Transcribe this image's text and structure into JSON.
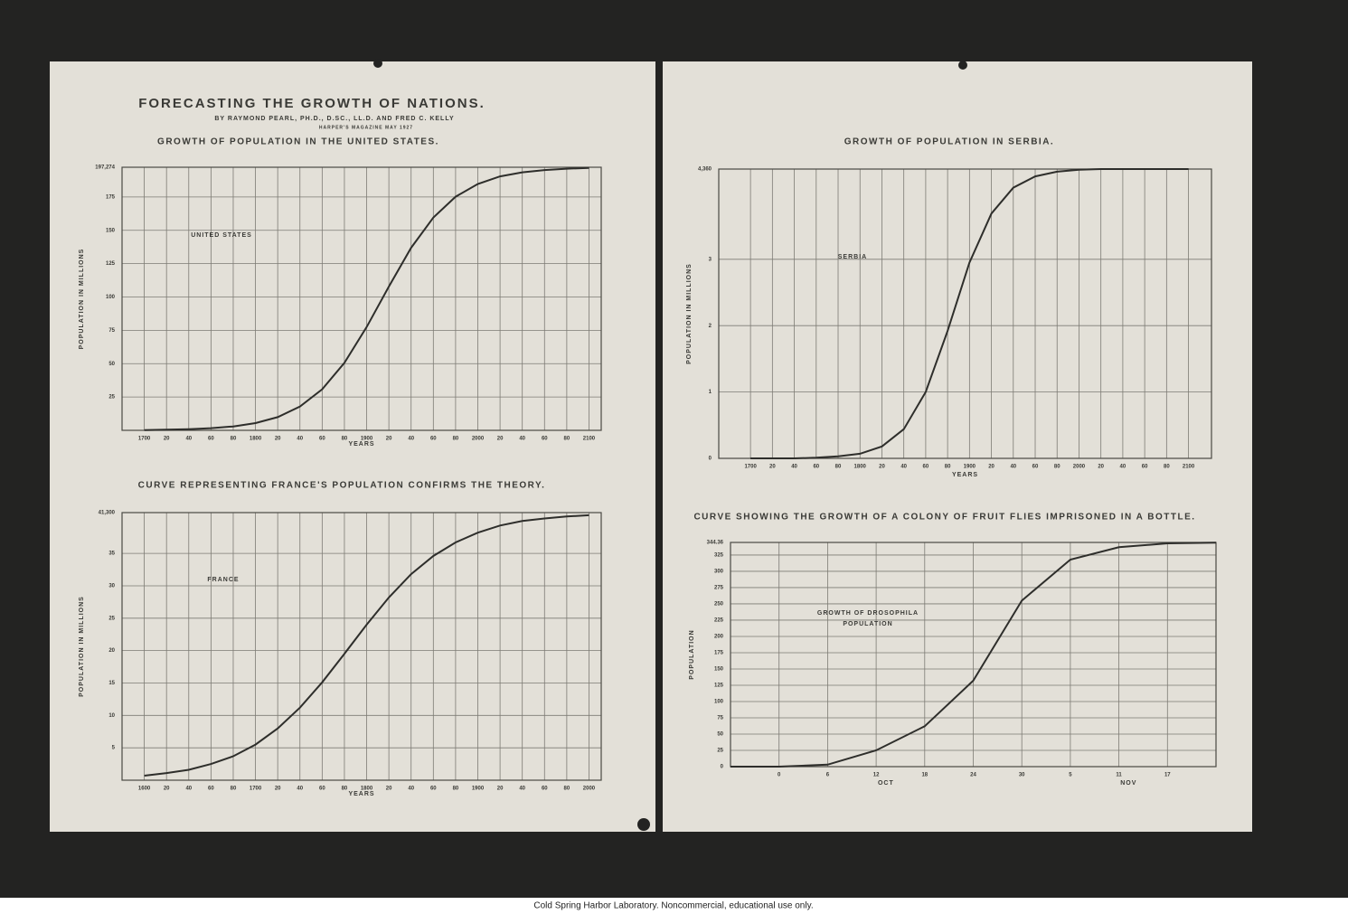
{
  "header": {
    "title": "FORECASTING THE GROWTH OF NATIONS.",
    "byline": "BY RAYMOND PEARL, PH.D., D.SC., LL.D. AND FRED C. KELLY",
    "source": "HARPER'S MAGAZINE MAY 1927"
  },
  "footer": "Cold Spring Harbor Laboratory. Noncommercial, educational use only.",
  "chart_data": [
    {
      "type": "line",
      "title": "GROWTH OF POPULATION IN THE UNITED STATES.",
      "ylabel": "POPULATION IN MILLIONS",
      "xlabel": "YEARS",
      "annotation": "UNITED STATES",
      "color": "#2e2e2b",
      "grid": true,
      "x": [
        1700,
        1720,
        1740,
        1760,
        1780,
        1800,
        1820,
        1840,
        1860,
        1880,
        1900,
        1920,
        1940,
        1960,
        1980,
        2000,
        2020,
        2040,
        2060,
        2080,
        2100
      ],
      "values": [
        0.2,
        0.5,
        0.9,
        1.6,
        2.9,
        5.4,
        9.9,
        17.8,
        30.7,
        50.6,
        77.4,
        107.8,
        136.9,
        159.5,
        175.2,
        184.7,
        190.4,
        193.5,
        195.2,
        196.2,
        196.7
      ],
      "xlim": [
        1680,
        2111
      ],
      "ylim": [
        0,
        197.274
      ],
      "xticks": [
        1700,
        {
          "value": 1720,
          "label": "20"
        },
        {
          "value": 1740,
          "label": "40"
        },
        {
          "value": 1760,
          "label": "60"
        },
        {
          "value": 1780,
          "label": "80"
        },
        1800,
        {
          "value": 1820,
          "label": "20"
        },
        {
          "value": 1840,
          "label": "40"
        },
        {
          "value": 1860,
          "label": "60"
        },
        {
          "value": 1880,
          "label": "80"
        },
        1900,
        {
          "value": 1920,
          "label": "20"
        },
        {
          "value": 1940,
          "label": "40"
        },
        {
          "value": 1960,
          "label": "60"
        },
        {
          "value": 1980,
          "label": "80"
        },
        2000,
        {
          "value": 2020,
          "label": "20"
        },
        {
          "value": 2040,
          "label": "40"
        },
        {
          "value": 2060,
          "label": "60"
        },
        {
          "value": 2080,
          "label": "80"
        },
        2100
      ],
      "yticks": [
        25,
        50,
        75,
        100,
        125,
        150,
        175,
        {
          "value": 197.274,
          "label": "197,274"
        }
      ]
    },
    {
      "type": "line",
      "title": "CURVE REPRESENTING FRANCE'S POPULATION CONFIRMS THE THEORY.",
      "ylabel": "POPULATION IN MILLIONS",
      "xlabel": "YEARS",
      "annotation": "FRANCE",
      "color": "#2e2e2b",
      "grid": true,
      "x": [
        1600,
        1620,
        1640,
        1660,
        1680,
        1700,
        1720,
        1740,
        1760,
        1780,
        1800,
        1820,
        1840,
        1860,
        1880,
        1900,
        1920,
        1940,
        1960,
        1980,
        2000
      ],
      "values": [
        0.7,
        1.1,
        1.6,
        2.5,
        3.7,
        5.5,
        8.0,
        11.2,
        15.1,
        19.5,
        24.0,
        28.2,
        31.8,
        34.6,
        36.7,
        38.2,
        39.3,
        40.0,
        40.4,
        40.7,
        40.9
      ],
      "xlim": [
        1580,
        2011
      ],
      "ylim": [
        0,
        41.3
      ],
      "xticks": [
        1600,
        {
          "value": 1620,
          "label": "20"
        },
        {
          "value": 1640,
          "label": "40"
        },
        {
          "value": 1660,
          "label": "60"
        },
        {
          "value": 1680,
          "label": "80"
        },
        1700,
        {
          "value": 1720,
          "label": "20"
        },
        {
          "value": 1740,
          "label": "40"
        },
        {
          "value": 1760,
          "label": "60"
        },
        {
          "value": 1780,
          "label": "80"
        },
        1800,
        {
          "value": 1820,
          "label": "20"
        },
        {
          "value": 1840,
          "label": "40"
        },
        {
          "value": 1860,
          "label": "60"
        },
        {
          "value": 1880,
          "label": "80"
        },
        1900,
        {
          "value": 1920,
          "label": "20"
        },
        {
          "value": 1940,
          "label": "40"
        },
        {
          "value": 1960,
          "label": "60"
        },
        {
          "value": 1980,
          "label": "80"
        },
        2000
      ],
      "yticks": [
        5,
        10,
        15,
        20,
        25,
        30,
        35,
        {
          "value": 41.3,
          "label": "41,300"
        }
      ]
    },
    {
      "type": "line",
      "title": "GROWTH OF POPULATION IN SERBIA.",
      "ylabel": "POPULATION IN MILLIONS",
      "xlabel": "YEARS",
      "annotation": "SERBIA",
      "color": "#2e2e2b",
      "grid": true,
      "x": [
        1700,
        1720,
        1740,
        1760,
        1780,
        1800,
        1820,
        1840,
        1860,
        1880,
        1900,
        1920,
        1940,
        1960,
        1980,
        2000,
        2020,
        2040,
        2060,
        2080,
        2100
      ],
      "values": [
        0.0,
        0.0,
        0.0,
        0.01,
        0.03,
        0.07,
        0.18,
        0.44,
        1.0,
        1.92,
        2.95,
        3.69,
        4.08,
        4.25,
        4.32,
        4.35,
        4.36,
        4.36,
        4.36,
        4.36,
        4.36
      ],
      "xlim": [
        1671,
        2121
      ],
      "ylim": [
        0,
        4.36
      ],
      "xticks": [
        1700,
        {
          "value": 1720,
          "label": "20"
        },
        {
          "value": 1740,
          "label": "40"
        },
        {
          "value": 1760,
          "label": "60"
        },
        {
          "value": 1780,
          "label": "80"
        },
        1800,
        {
          "value": 1820,
          "label": "20"
        },
        {
          "value": 1840,
          "label": "40"
        },
        {
          "value": 1860,
          "label": "60"
        },
        {
          "value": 1880,
          "label": "80"
        },
        1900,
        {
          "value": 1920,
          "label": "20"
        },
        {
          "value": 1940,
          "label": "40"
        },
        {
          "value": 1960,
          "label": "60"
        },
        {
          "value": 1980,
          "label": "80"
        },
        2000,
        {
          "value": 2020,
          "label": "20"
        },
        {
          "value": 2040,
          "label": "40"
        },
        {
          "value": 2060,
          "label": "60"
        },
        {
          "value": 2080,
          "label": "80"
        },
        2100
      ],
      "yticks": [
        0,
        1,
        2,
        3,
        {
          "value": 4.36,
          "label": "4,360"
        }
      ]
    },
    {
      "type": "line",
      "title": "CURVE SHOWING THE GROWTH OF A COLONY OF FRUIT FLIES IMPRISONED IN A BOTTLE.",
      "ylabel": "POPULATION",
      "annotation": [
        "GROWTH OF DROSOPHILA",
        "POPULATION"
      ],
      "x_groups": [
        "OCT",
        "NOV"
      ],
      "color": "#2e2e2b",
      "grid": true,
      "x": [
        -6,
        0,
        6,
        12,
        18,
        24,
        30,
        36,
        42,
        48,
        54
      ],
      "values": [
        0,
        0,
        3,
        25,
        62,
        132,
        255,
        318,
        337,
        343,
        344
      ],
      "xlim": [
        -6,
        54
      ],
      "ylim": [
        0,
        344.36
      ],
      "xticks": [
        0,
        6,
        12,
        18,
        24,
        30,
        {
          "value": 36,
          "label": "5"
        },
        {
          "value": 42,
          "label": "11"
        },
        {
          "value": 48,
          "label": "17"
        }
      ],
      "yticks": [
        0,
        25,
        50,
        75,
        100,
        125,
        150,
        175,
        200,
        225,
        250,
        275,
        300,
        325,
        344.36
      ]
    }
  ]
}
